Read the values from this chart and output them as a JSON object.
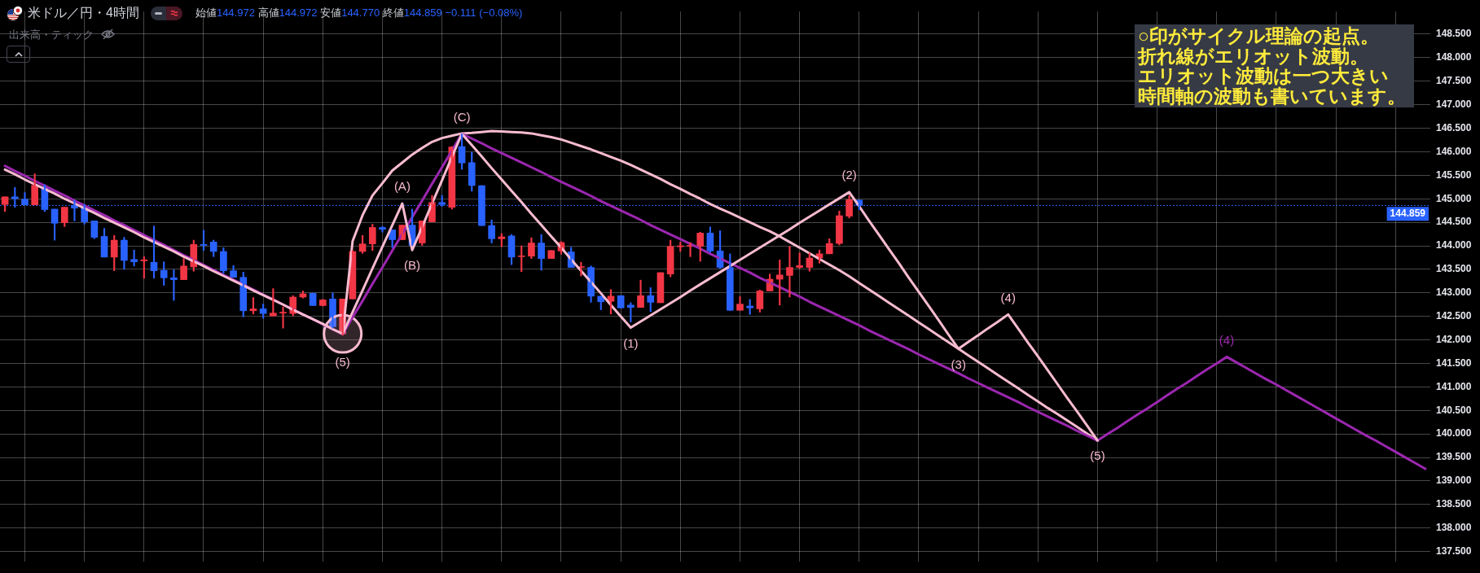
{
  "chart_data": {
    "type": "candlestick",
    "title": "米ドル／円・4時間",
    "subtitle": "始値144.972 高値144.972 安値144.770 終値144.859 −0.111 (−0.08%)",
    "annotations": [
      "出来高・ティック",
      "○印がサイクル理論の起点。",
      "折れ線がエリオット波動。",
      "エリオット波動は一つ大きい",
      "時間軸の波動も書いています。",
      {
        "text": "(5)",
        "y": 142.13
      },
      {
        "text": "(A)",
        "y": 144.9
      },
      {
        "text": "(B)",
        "y": 143.91
      },
      {
        "text": "(C)",
        "y": 146.38
      },
      {
        "text": "(1)",
        "y": 142.26
      },
      {
        "text": "(2)",
        "y": 145.14
      },
      {
        "text": "(3)",
        "y": 141.81
      },
      {
        "text": "(4)",
        "y": 142.54
      },
      {
        "text": "(5)",
        "y": 139.86
      },
      {
        "text": "(4)",
        "y": 141.64
      }
    ],
    "categories": [
      null,
      null,
      null,
      null,
      null,
      null,
      null,
      null,
      null,
      null,
      null,
      null,
      null,
      null,
      null,
      null,
      null,
      null,
      null,
      null,
      null,
      null,
      null,
      null,
      null,
      null,
      null,
      null,
      null,
      null,
      null,
      null,
      null,
      null,
      null,
      null,
      null,
      null,
      null,
      null,
      null,
      null,
      null,
      null,
      null,
      null,
      null,
      null,
      null,
      null,
      null,
      null,
      null,
      null,
      null,
      null,
      null,
      null,
      null,
      null,
      null,
      null,
      null,
      null,
      null,
      null,
      null,
      null,
      null,
      null,
      null,
      null,
      null,
      null,
      null,
      null,
      null,
      null,
      null,
      null,
      null,
      null,
      null,
      null,
      null,
      null,
      null,
      null,
      null,
      null,
      null,
      null,
      null,
      null,
      null,
      null,
      null,
      null,
      null,
      null,
      null,
      null,
      null,
      null,
      null,
      null,
      null,
      null,
      null,
      null,
      null,
      null,
      null,
      null,
      null,
      null,
      null,
      null,
      null,
      null,
      null,
      null,
      null,
      null,
      null,
      null,
      null,
      null,
      null,
      null,
      null,
      null,
      null,
      null,
      null,
      null,
      null,
      null,
      null,
      null,
      null,
      null,
      null,
      null
    ],
    "ohlc": [
      [
        144.88,
        145.04,
        144.73,
        145.04
      ],
      [
        145.04,
        145.24,
        144.82,
        145.0
      ],
      [
        144.99,
        145.13,
        144.87,
        144.87
      ],
      [
        144.87,
        145.53,
        144.87,
        145.29
      ],
      [
        145.26,
        145.3,
        144.73,
        144.77
      ],
      [
        144.78,
        144.78,
        144.12,
        144.48
      ],
      [
        144.49,
        144.82,
        144.41,
        144.82
      ],
      [
        144.86,
        144.97,
        144.53,
        144.8
      ],
      [
        144.82,
        144.88,
        144.46,
        144.51
      ],
      [
        144.53,
        144.53,
        144.15,
        144.18
      ],
      [
        144.2,
        144.37,
        143.76,
        143.76
      ],
      [
        143.76,
        144.22,
        143.47,
        144.12
      ],
      [
        144.12,
        144.18,
        143.5,
        143.69
      ],
      [
        143.71,
        143.91,
        143.57,
        143.66
      ],
      [
        143.68,
        143.77,
        143.31,
        143.7
      ],
      [
        143.65,
        144.42,
        143.31,
        143.47
      ],
      [
        143.48,
        143.66,
        143.16,
        143.32
      ],
      [
        143.32,
        143.49,
        142.84,
        143.28
      ],
      [
        143.28,
        143.73,
        143.28,
        143.57
      ],
      [
        143.55,
        144.12,
        143.46,
        144.03
      ],
      [
        144.03,
        144.33,
        143.9,
        144.01
      ],
      [
        144.08,
        144.12,
        143.77,
        143.88
      ],
      [
        143.88,
        143.96,
        143.42,
        143.47
      ],
      [
        143.47,
        143.58,
        143.33,
        143.33
      ],
      [
        143.33,
        143.44,
        142.49,
        142.62
      ],
      [
        142.62,
        142.9,
        142.55,
        142.66
      ],
      [
        142.66,
        142.76,
        142.46,
        142.56
      ],
      [
        142.51,
        143.09,
        142.51,
        142.57
      ],
      [
        142.57,
        142.7,
        142.25,
        142.58
      ],
      [
        142.56,
        142.94,
        142.51,
        142.91
      ],
      [
        142.91,
        143.04,
        142.89,
        142.98
      ],
      [
        142.99,
        143.0,
        142.73,
        142.73
      ],
      [
        142.73,
        142.86,
        142.72,
        142.85
      ],
      [
        142.87,
        143.0,
        142.25,
        142.28
      ],
      [
        142.13,
        142.87,
        142.1,
        142.87
      ],
      [
        142.87,
        143.9,
        142.87,
        143.88
      ],
      [
        143.88,
        144.22,
        143.84,
        144.04
      ],
      [
        144.04,
        144.46,
        143.9,
        144.39
      ],
      [
        144.39,
        144.41,
        144.29,
        144.35
      ],
      [
        144.34,
        144.34,
        143.96,
        144.13
      ],
      [
        144.13,
        144.44,
        144.13,
        144.44
      ],
      [
        144.44,
        144.78,
        144.01,
        144.01
      ],
      [
        144.06,
        144.53,
        144.01,
        144.53
      ],
      [
        144.51,
        145.07,
        144.51,
        144.92
      ],
      [
        144.92,
        145.07,
        144.84,
        144.88
      ],
      [
        144.82,
        146.11,
        144.78,
        146.1
      ],
      [
        146.11,
        146.38,
        145.63,
        145.76
      ],
      [
        145.77,
        145.99,
        145.16,
        145.28
      ],
      [
        145.28,
        145.28,
        144.43,
        144.43
      ],
      [
        144.43,
        144.55,
        144.06,
        144.15
      ],
      [
        144.15,
        144.26,
        143.98,
        144.19
      ],
      [
        144.21,
        144.24,
        143.6,
        143.76
      ],
      [
        143.77,
        144.0,
        143.45,
        143.78
      ],
      [
        143.78,
        144.17,
        143.73,
        144.06
      ],
      [
        144.06,
        144.24,
        143.48,
        143.73
      ],
      [
        143.73,
        143.9,
        143.73,
        143.9
      ],
      [
        143.89,
        144.09,
        143.82,
        144.07
      ],
      [
        143.87,
        143.97,
        143.54,
        143.54
      ],
      [
        143.54,
        143.65,
        143.36,
        143.55
      ],
      [
        143.54,
        143.57,
        142.8,
        142.93
      ],
      [
        142.93,
        142.93,
        142.64,
        142.81
      ],
      [
        142.82,
        143.07,
        142.55,
        142.93
      ],
      [
        142.94,
        142.94,
        142.68,
        142.68
      ],
      [
        142.74,
        142.79,
        142.38,
        142.69
      ],
      [
        142.69,
        143.27,
        142.69,
        142.94
      ],
      [
        142.94,
        143.11,
        142.6,
        142.8
      ],
      [
        142.79,
        143.43,
        142.79,
        143.43
      ],
      [
        143.4,
        144.12,
        143.34,
        143.99
      ],
      [
        143.98,
        144.08,
        143.88,
        144.0
      ],
      [
        143.99,
        144.07,
        143.77,
        144.01
      ],
      [
        143.99,
        144.29,
        143.67,
        144.27
      ],
      [
        144.27,
        144.4,
        143.86,
        143.89
      ],
      [
        143.89,
        144.32,
        143.52,
        143.54
      ],
      [
        143.54,
        143.83,
        142.62,
        142.63
      ],
      [
        142.63,
        142.92,
        142.63,
        142.76
      ],
      [
        142.72,
        142.86,
        142.54,
        142.68
      ],
      [
        142.66,
        143.06,
        142.59,
        143.04
      ],
      [
        143.04,
        143.4,
        143.04,
        143.29
      ],
      [
        143.29,
        143.7,
        142.74,
        143.38
      ],
      [
        143.37,
        143.99,
        142.91,
        143.54
      ],
      [
        143.54,
        143.85,
        143.52,
        143.58
      ],
      [
        143.54,
        143.85,
        143.46,
        143.74
      ],
      [
        143.74,
        143.91,
        143.63,
        143.83
      ],
      [
        143.83,
        144.15,
        143.83,
        144.05
      ],
      [
        144.05,
        144.74,
        144.02,
        144.64
      ],
      [
        144.63,
        145.07,
        144.59,
        144.98
      ],
      [
        144.972,
        144.972,
        144.77,
        144.859
      ],
      null,
      null,
      null,
      null,
      null,
      null,
      null,
      null,
      null,
      null,
      null,
      null,
      null,
      null,
      null,
      null,
      null,
      null,
      null,
      null,
      null,
      null,
      null,
      null,
      null,
      null,
      null,
      null,
      null,
      null,
      null,
      null,
      null,
      null,
      null,
      null,
      null,
      null,
      null,
      null,
      null,
      null,
      null,
      null,
      null,
      null,
      null,
      null,
      null,
      null,
      null,
      null,
      null,
      null,
      null,
      null,
      null
    ],
    "colors": [
      "#f23645",
      "#2962ff",
      "#2962ff",
      "#f23645",
      "#2962ff",
      "#2962ff",
      "#f23645",
      "#2962ff",
      "#2962ff",
      "#2962ff",
      "#2962ff",
      "#f23645",
      "#2962ff",
      "#2962ff",
      "#f23645",
      "#2962ff",
      "#2962ff",
      "#2962ff",
      "#f23645",
      "#f23645",
      "#2962ff",
      "#2962ff",
      "#2962ff",
      "#2962ff",
      "#2962ff",
      "#f23645",
      "#2962ff",
      "#f23645",
      "#f23645",
      "#f23645",
      "#f23645",
      "#2962ff",
      "#f23645",
      "#2962ff",
      "#f23645",
      "#f23645",
      "#f23645",
      "#f23645",
      "#2962ff",
      "#2962ff",
      "#f23645",
      "#2962ff",
      "#f23645",
      "#f23645",
      "#2962ff",
      "#f23645",
      "#2962ff",
      "#2962ff",
      "#2962ff",
      "#2962ff",
      "#f23645",
      "#2962ff",
      "#f23645",
      "#f23645",
      "#2962ff",
      "#f23645",
      "#f23645",
      "#2962ff",
      "#f23645",
      "#2962ff",
      "#2962ff",
      "#f23645",
      "#2962ff",
      "#2962ff",
      "#f23645",
      "#2962ff",
      "#f23645",
      "#f23645",
      "#f23645",
      "#f23645",
      "#f23645",
      "#2962ff",
      "#2962ff",
      "#2962ff",
      "#f23645",
      "#2962ff",
      "#f23645",
      "#f23645",
      "#f23645",
      "#f23645",
      "#f23645",
      "#f23645",
      "#f23645",
      "#f23645",
      "#f23645",
      "#f23645",
      "#2962ff",
      null,
      null,
      null,
      null,
      null,
      null,
      null,
      null,
      null,
      null,
      null,
      null,
      null,
      null,
      null,
      null,
      null,
      null,
      null,
      null,
      null,
      null,
      null,
      null,
      null,
      null,
      null,
      null,
      null,
      null,
      null,
      null,
      null,
      null,
      null,
      null,
      null,
      null,
      null,
      null,
      null,
      null,
      null,
      null,
      null,
      null,
      null,
      null,
      null,
      null,
      null,
      null,
      null,
      null,
      null,
      null,
      null
    ],
    "series": [
      {
        "type": "line",
        "color": "#f8bbd0",
        "values": [
          145.62,
          145.52,
          145.41,
          145.31,
          145.21,
          145.11,
          145.0,
          144.9,
          144.8,
          144.7,
          144.59,
          144.49,
          144.39,
          144.29,
          144.18,
          144.08,
          143.98,
          143.88,
          143.77,
          143.67,
          143.57,
          143.46,
          143.36,
          143.26,
          143.16,
          143.05,
          142.95,
          142.85,
          142.75,
          142.64,
          142.54,
          142.44,
          142.34,
          142.23,
          142.13,
          142.59,
          143.05,
          143.52,
          143.98,
          144.44,
          144.9,
          143.91,
          144.4,
          144.9,
          145.39,
          145.89,
          146.38,
          146.14,
          145.9,
          145.65,
          145.41,
          145.17,
          144.93,
          144.68,
          144.44,
          144.2,
          143.96,
          143.71,
          143.47,
          143.23,
          142.99,
          142.74,
          142.5,
          142.26,
          142.39,
          142.52,
          142.65,
          142.78,
          142.91,
          143.05,
          143.18,
          143.31,
          143.44,
          143.57,
          143.7,
          143.83,
          143.96,
          144.09,
          144.22,
          144.35,
          144.49,
          144.62,
          144.75,
          144.88,
          145.01,
          145.14,
          144.84,
          144.53,
          144.23,
          143.93,
          143.63,
          143.32,
          143.02,
          142.72,
          142.42,
          142.11,
          141.81,
          141.96,
          142.1,
          142.25,
          142.39,
          142.54,
          142.24,
          141.94,
          141.65,
          141.35,
          141.05,
          140.75,
          140.46,
          140.16,
          139.86,
          null,
          null,
          null,
          null,
          null,
          null,
          null,
          null,
          null,
          null,
          null,
          null,
          null,
          null,
          null,
          null,
          null,
          null,
          null,
          null,
          null,
          null,
          null,
          null,
          null,
          null,
          null,
          null,
          null,
          null,
          null,
          null,
          null
        ]
      },
      {
        "type": "line",
        "color": "#9c27b0",
        "values": [
          145.7,
          145.59,
          145.49,
          145.38,
          145.28,
          145.17,
          145.07,
          144.96,
          144.86,
          144.75,
          144.65,
          144.54,
          144.44,
          144.33,
          144.23,
          144.12,
          144.02,
          143.91,
          143.8,
          143.7,
          143.59,
          143.49,
          143.38,
          143.28,
          143.17,
          143.07,
          142.96,
          142.86,
          142.75,
          142.65,
          142.54,
          142.44,
          142.33,
          142.23,
          142.12,
          142.48,
          142.83,
          143.19,
          143.54,
          143.9,
          144.25,
          144.61,
          144.96,
          145.32,
          145.67,
          146.03,
          146.38,
          146.28,
          146.18,
          146.07,
          145.97,
          145.87,
          145.77,
          145.67,
          145.57,
          145.46,
          145.36,
          145.26,
          145.16,
          145.06,
          144.95,
          144.85,
          144.75,
          144.65,
          144.55,
          144.44,
          144.34,
          144.24,
          144.14,
          144.04,
          143.94,
          143.83,
          143.73,
          143.63,
          143.53,
          143.43,
          143.32,
          143.22,
          143.12,
          143.02,
          142.92,
          142.81,
          142.71,
          142.61,
          142.51,
          142.41,
          142.31,
          142.2,
          142.1,
          142.0,
          141.9,
          141.8,
          141.69,
          141.59,
          141.49,
          141.39,
          141.29,
          141.18,
          141.08,
          140.98,
          140.88,
          140.78,
          140.68,
          140.57,
          140.47,
          140.37,
          140.27,
          140.17,
          140.06,
          139.96,
          139.86,
          140.0,
          140.13,
          140.27,
          140.41,
          140.54,
          140.68,
          140.82,
          140.96,
          141.09,
          141.23,
          141.37,
          141.5,
          141.64,
          141.52,
          141.4,
          141.28,
          141.16,
          141.05,
          140.93,
          140.81,
          140.69,
          140.57,
          140.45,
          140.33,
          140.21,
          140.09,
          139.97,
          139.86,
          139.74,
          139.62,
          139.5,
          139.38,
          139.26
        ]
      },
      {
        "type": "line",
        "color": "#f8bbd0",
        "values": [
          null,
          null,
          null,
          null,
          null,
          null,
          null,
          null,
          null,
          null,
          null,
          null,
          null,
          null,
          null,
          null,
          null,
          null,
          null,
          null,
          null,
          null,
          null,
          null,
          null,
          null,
          null,
          null,
          null,
          null,
          null,
          null,
          null,
          null,
          142.13,
          144.1,
          144.65,
          145.07,
          145.33,
          145.6,
          145.77,
          145.94,
          146.08,
          146.21,
          146.29,
          146.34,
          146.39,
          146.4,
          146.42,
          146.44,
          146.43,
          146.42,
          146.41,
          146.39,
          146.35,
          146.31,
          146.26,
          146.19,
          146.12,
          146.05,
          145.97,
          145.89,
          145.81,
          145.72,
          145.62,
          145.52,
          145.42,
          145.31,
          145.21,
          145.1,
          145.0,
          144.89,
          144.79,
          144.7,
          144.6,
          144.5,
          144.4,
          144.31,
          144.2,
          144.08,
          143.96,
          143.84,
          143.72,
          143.6,
          143.48,
          143.35,
          143.21,
          143.07,
          142.93,
          142.79,
          142.65,
          142.51,
          142.37,
          142.23,
          142.09,
          141.95,
          141.81,
          141.67,
          141.53,
          141.39,
          141.25,
          141.11,
          140.97,
          140.83,
          140.69,
          140.55,
          140.42,
          140.28,
          140.14,
          140.0,
          139.86,
          null,
          null,
          null,
          null,
          null,
          null,
          null,
          null,
          null,
          null,
          null,
          null,
          null,
          null,
          null,
          null,
          null,
          null,
          null,
          null,
          null,
          null,
          null,
          null,
          null,
          null,
          null,
          null,
          null,
          null,
          null,
          null,
          null
        ]
      },
      {
        "type": "scatter",
        "color": "#f8bbd0",
        "marker": "circle",
        "values": [
          null,
          null,
          null,
          null,
          null,
          null,
          null,
          null,
          null,
          null,
          null,
          null,
          null,
          null,
          null,
          null,
          null,
          null,
          null,
          null,
          null,
          null,
          null,
          null,
          null,
          null,
          null,
          null,
          null,
          null,
          null,
          null,
          null,
          null,
          142.13,
          null,
          null,
          null,
          null,
          null,
          null,
          null,
          null,
          null,
          null,
          null,
          null,
          null,
          null,
          null,
          null,
          null,
          null,
          null,
          null,
          null,
          null,
          null,
          null,
          null,
          null,
          null,
          null,
          null,
          null,
          null,
          null,
          null,
          null,
          null,
          null,
          null,
          null,
          null,
          null,
          null,
          null,
          null,
          null,
          null,
          null,
          null,
          null,
          null,
          null,
          null,
          null,
          null,
          null,
          null,
          null,
          null,
          null,
          null,
          null,
          null,
          null,
          null,
          null,
          null,
          null,
          null,
          null,
          null,
          null,
          null,
          null,
          null,
          null,
          null,
          null,
          null,
          null,
          null,
          null,
          null,
          null,
          null,
          null,
          null,
          null,
          null,
          null,
          null,
          null,
          null,
          null,
          null,
          null,
          null,
          null,
          null,
          null,
          null,
          null,
          null,
          null,
          null,
          null,
          null,
          null,
          null,
          null,
          null
        ]
      }
    ],
    "ylim": [
      137.29,
      148.98
    ],
    "yticks": [
      {
        "value": 137.5,
        "label": "137.500"
      },
      {
        "value": 138,
        "label": "138.000"
      },
      {
        "value": 138.5,
        "label": "138.500"
      },
      {
        "value": 139,
        "label": "139.000"
      },
      {
        "value": 139.5,
        "label": "139.500"
      },
      {
        "value": 140,
        "label": "140.000"
      },
      {
        "value": 140.5,
        "label": "140.500"
      },
      {
        "value": 141,
        "label": "141.000"
      },
      {
        "value": 141.5,
        "label": "141.500"
      },
      {
        "value": 142,
        "label": "142.000"
      },
      {
        "value": 142.5,
        "label": "142.500"
      },
      {
        "value": 143,
        "label": "143.000"
      },
      {
        "value": 143.5,
        "label": "143.500"
      },
      {
        "value": 144,
        "label": "144.000"
      },
      {
        "value": 144.5,
        "label": "144.500"
      },
      {
        "value": 145,
        "label": "145.000"
      },
      {
        "value": 145.5,
        "label": "145.500"
      },
      {
        "value": 146,
        "label": "146.000"
      },
      {
        "value": 146.5,
        "label": "146.500"
      },
      {
        "value": 147,
        "label": "147.000"
      },
      {
        "value": 147.5,
        "label": "147.500"
      },
      {
        "value": 148,
        "label": "148.000"
      },
      {
        "value": 148.5,
        "label": "148.500"
      }
    ],
    "ref_lines": [
      {
        "axis": "y",
        "value": 144.859,
        "label": "144.859",
        "color": "#2962ff",
        "line_style": "dotted"
      }
    ],
    "grid": true,
    "legend": false,
    "tick_labels": "y"
  }
}
